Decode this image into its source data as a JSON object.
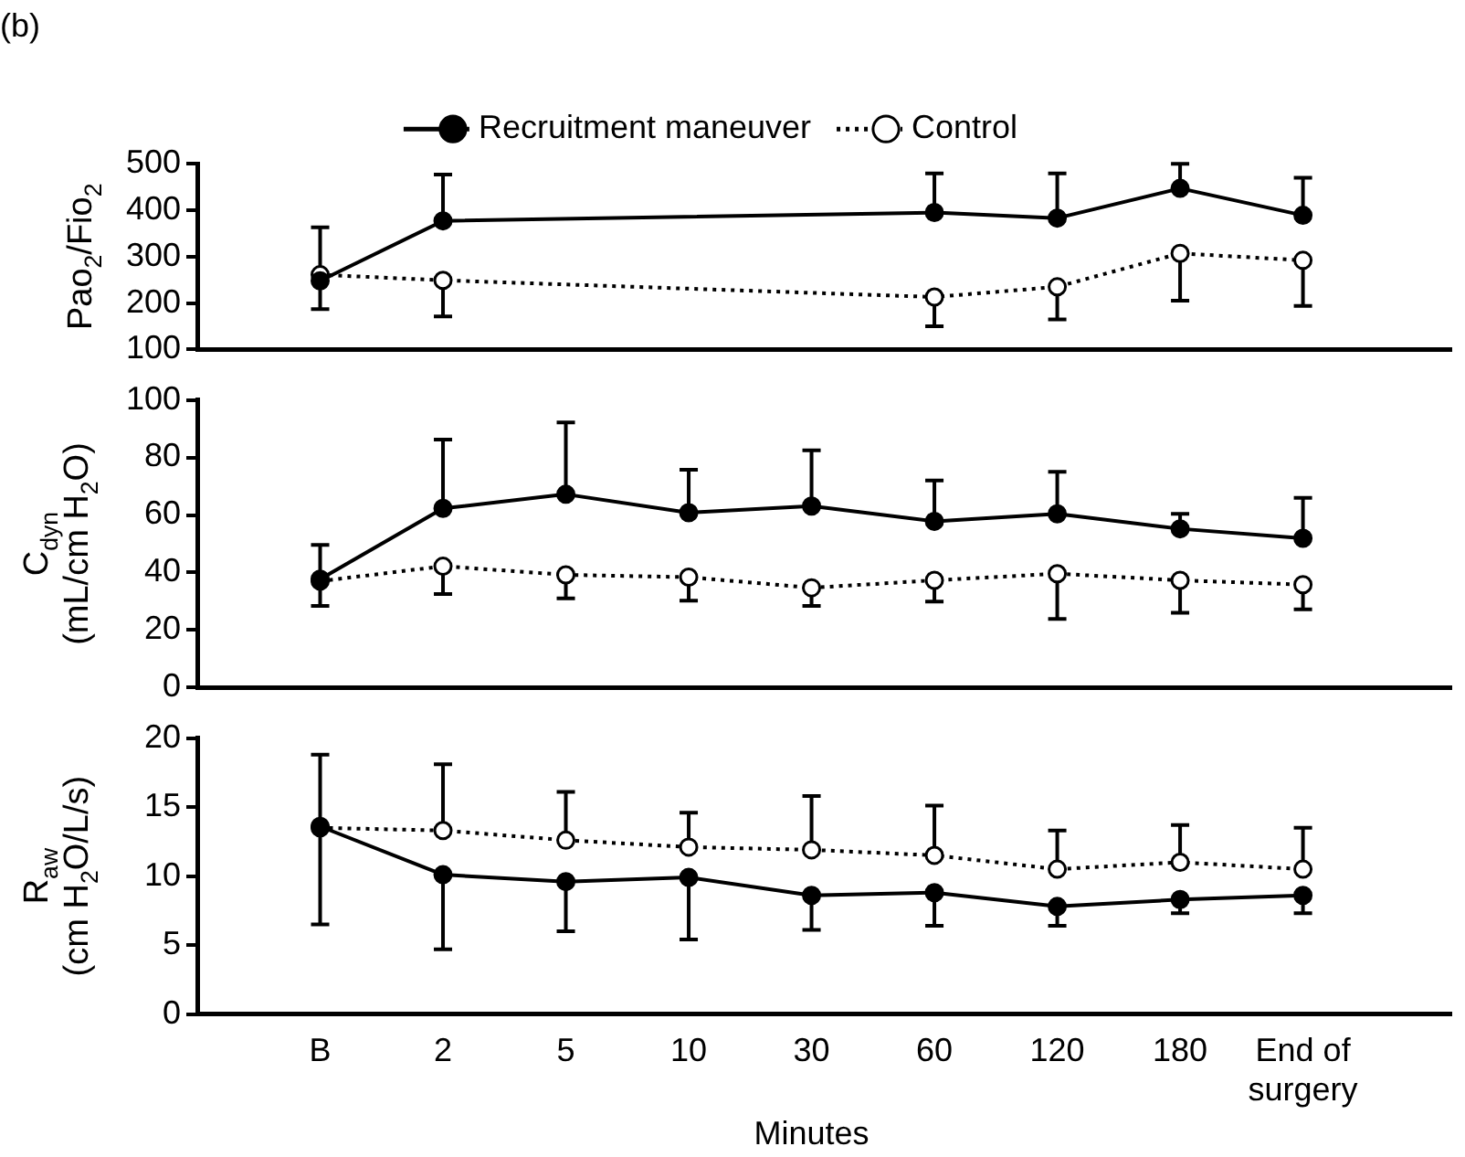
{
  "chart_data": [
    {
      "type": "line",
      "title": "(b)",
      "ylabel": "Pao$_{2}$/Fio$_{2}$",
      "categories": [
        null,
        null,
        null,
        null,
        null,
        null,
        null,
        null,
        null
      ],
      "ylim": [
        100,
        500
      ],
      "yticks": [
        100,
        200,
        300,
        400,
        500
      ],
      "tick_labels": "y",
      "legend": "top",
      "marker": "circle",
      "series": [
        {
          "name": "Recruitment maneuver",
          "color": "#000000",
          "line_style": "solid",
          "values": [
            248,
            377,
            null,
            null,
            null,
            395,
            383,
            447,
            389
          ],
          "errors": [
            [
              248,
              363
            ],
            [
              377,
              477
            ],
            null,
            null,
            null,
            [
              395,
              479
            ],
            [
              383,
              479
            ],
            [
              447,
              500
            ],
            [
              389,
              470
            ]
          ]
        },
        {
          "name": "Control",
          "color": "#000000",
          "line_style": "dotted",
          "values": [
            261,
            249,
            null,
            null,
            null,
            213,
            235,
            307,
            292
          ],
          "errors": [
            [
              187,
              261
            ],
            [
              171,
              249
            ],
            null,
            null,
            null,
            [
              150,
              213
            ],
            [
              165,
              235
            ],
            [
              205,
              307
            ],
            [
              194,
              292
            ]
          ]
        }
      ]
    },
    {
      "type": "line",
      "ylabel": "C$_{dyn}$\n(mL/cm H$_{2}$O)",
      "categories": [
        null,
        null,
        null,
        null,
        null,
        null,
        null,
        null,
        null
      ],
      "ylim": [
        0,
        100
      ],
      "yticks": [
        0,
        20,
        40,
        60,
        80,
        100
      ],
      "tick_labels": "y",
      "marker": "circle",
      "series": [
        {
          "color": "#000000",
          "line_style": "solid",
          "values": [
            37.7,
            62.3,
            67.2,
            60.8,
            63.1,
            57.8,
            60.4,
            55.2,
            51.9
          ],
          "errors": [
            [
              37.7,
              49.6
            ],
            [
              62.3,
              86.2
            ],
            [
              67.2,
              92.2
            ],
            [
              60.8,
              75.7
            ],
            [
              63.1,
              82.5
            ],
            [
              57.8,
              72
            ],
            [
              60.4,
              75
            ],
            [
              55.2,
              60.4
            ],
            [
              51.9,
              66
            ]
          ]
        },
        {
          "color": "#000000",
          "line_style": "dotted",
          "values": [
            37,
            42.2,
            39.2,
            38.4,
            34.7,
            37.3,
            39.6,
            37.3,
            35.8
          ],
          "errors": [
            [
              28.4,
              37
            ],
            [
              32.5,
              42.2
            ],
            [
              31,
              39.2
            ],
            [
              30.2,
              38.4
            ],
            [
              28.4,
              34.7
            ],
            [
              29.9,
              37.3
            ],
            [
              23.9,
              39.6
            ],
            [
              26,
              37.3
            ],
            [
              27.2,
              35.8
            ]
          ]
        }
      ]
    },
    {
      "type": "line",
      "xlabel": "Minutes",
      "ylabel": "R$_{aw}$\n(cm H$_{2}$O/L/s)",
      "categories": [
        "B",
        "2",
        "5",
        "10",
        "30",
        "60",
        "120",
        "180",
        "End of surgery"
      ],
      "ylim": [
        0,
        20
      ],
      "yticks": [
        0,
        5,
        10,
        15,
        20
      ],
      "marker": "circle",
      "series": [
        {
          "color": "#000000",
          "line_style": "solid",
          "values": [
            13.6,
            10.1,
            9.6,
            9.9,
            8.6,
            8.8,
            7.8,
            8.3,
            8.6
          ],
          "errors": [
            [
              6.5,
              13.6
            ],
            [
              4.7,
              10.1
            ],
            [
              6,
              9.6
            ],
            [
              5.4,
              9.9
            ],
            [
              6.1,
              8.6
            ],
            [
              6.4,
              8.8
            ],
            [
              6.4,
              7.8
            ],
            [
              7.3,
              8.3
            ],
            [
              7.3,
              8.6
            ]
          ]
        },
        {
          "color": "#000000",
          "line_style": "dotted",
          "values": [
            13.5,
            13.3,
            12.6,
            12.1,
            11.9,
            11.5,
            10.5,
            11,
            10.5
          ],
          "errors": [
            [
              13.5,
              18.8
            ],
            [
              13.3,
              18.1
            ],
            [
              12.6,
              16.1
            ],
            [
              12.1,
              14.6
            ],
            [
              11.9,
              15.8
            ],
            [
              11.5,
              15.1
            ],
            [
              10.5,
              13.3
            ],
            [
              11,
              13.7
            ],
            [
              10.5,
              13.5
            ]
          ]
        }
      ]
    }
  ]
}
